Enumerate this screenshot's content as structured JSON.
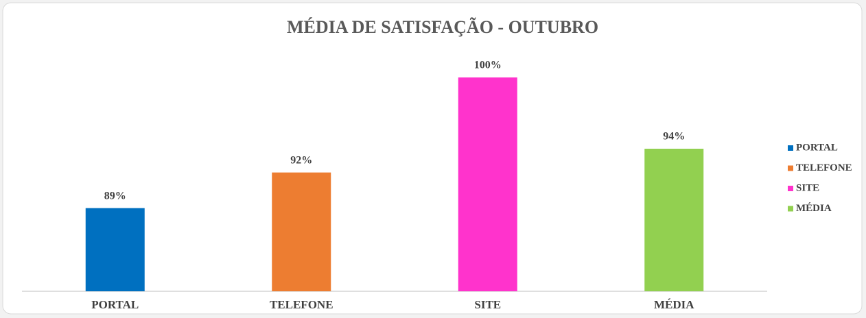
{
  "chart_data": {
    "type": "bar",
    "title": "MÉDIA DE SATISFAÇÃO - OUTUBRO",
    "categories": [
      "PORTAL",
      "TELEFONE",
      "SITE",
      "MÉDIA"
    ],
    "values": [
      89,
      92,
      100,
      94
    ],
    "value_labels": [
      "89%",
      "92%",
      "100%",
      "94%"
    ],
    "colors": [
      "#0070c0",
      "#ed7d31",
      "#ff33cc",
      "#92d050"
    ],
    "ylim": [
      82,
      100
    ],
    "legend": "right"
  }
}
